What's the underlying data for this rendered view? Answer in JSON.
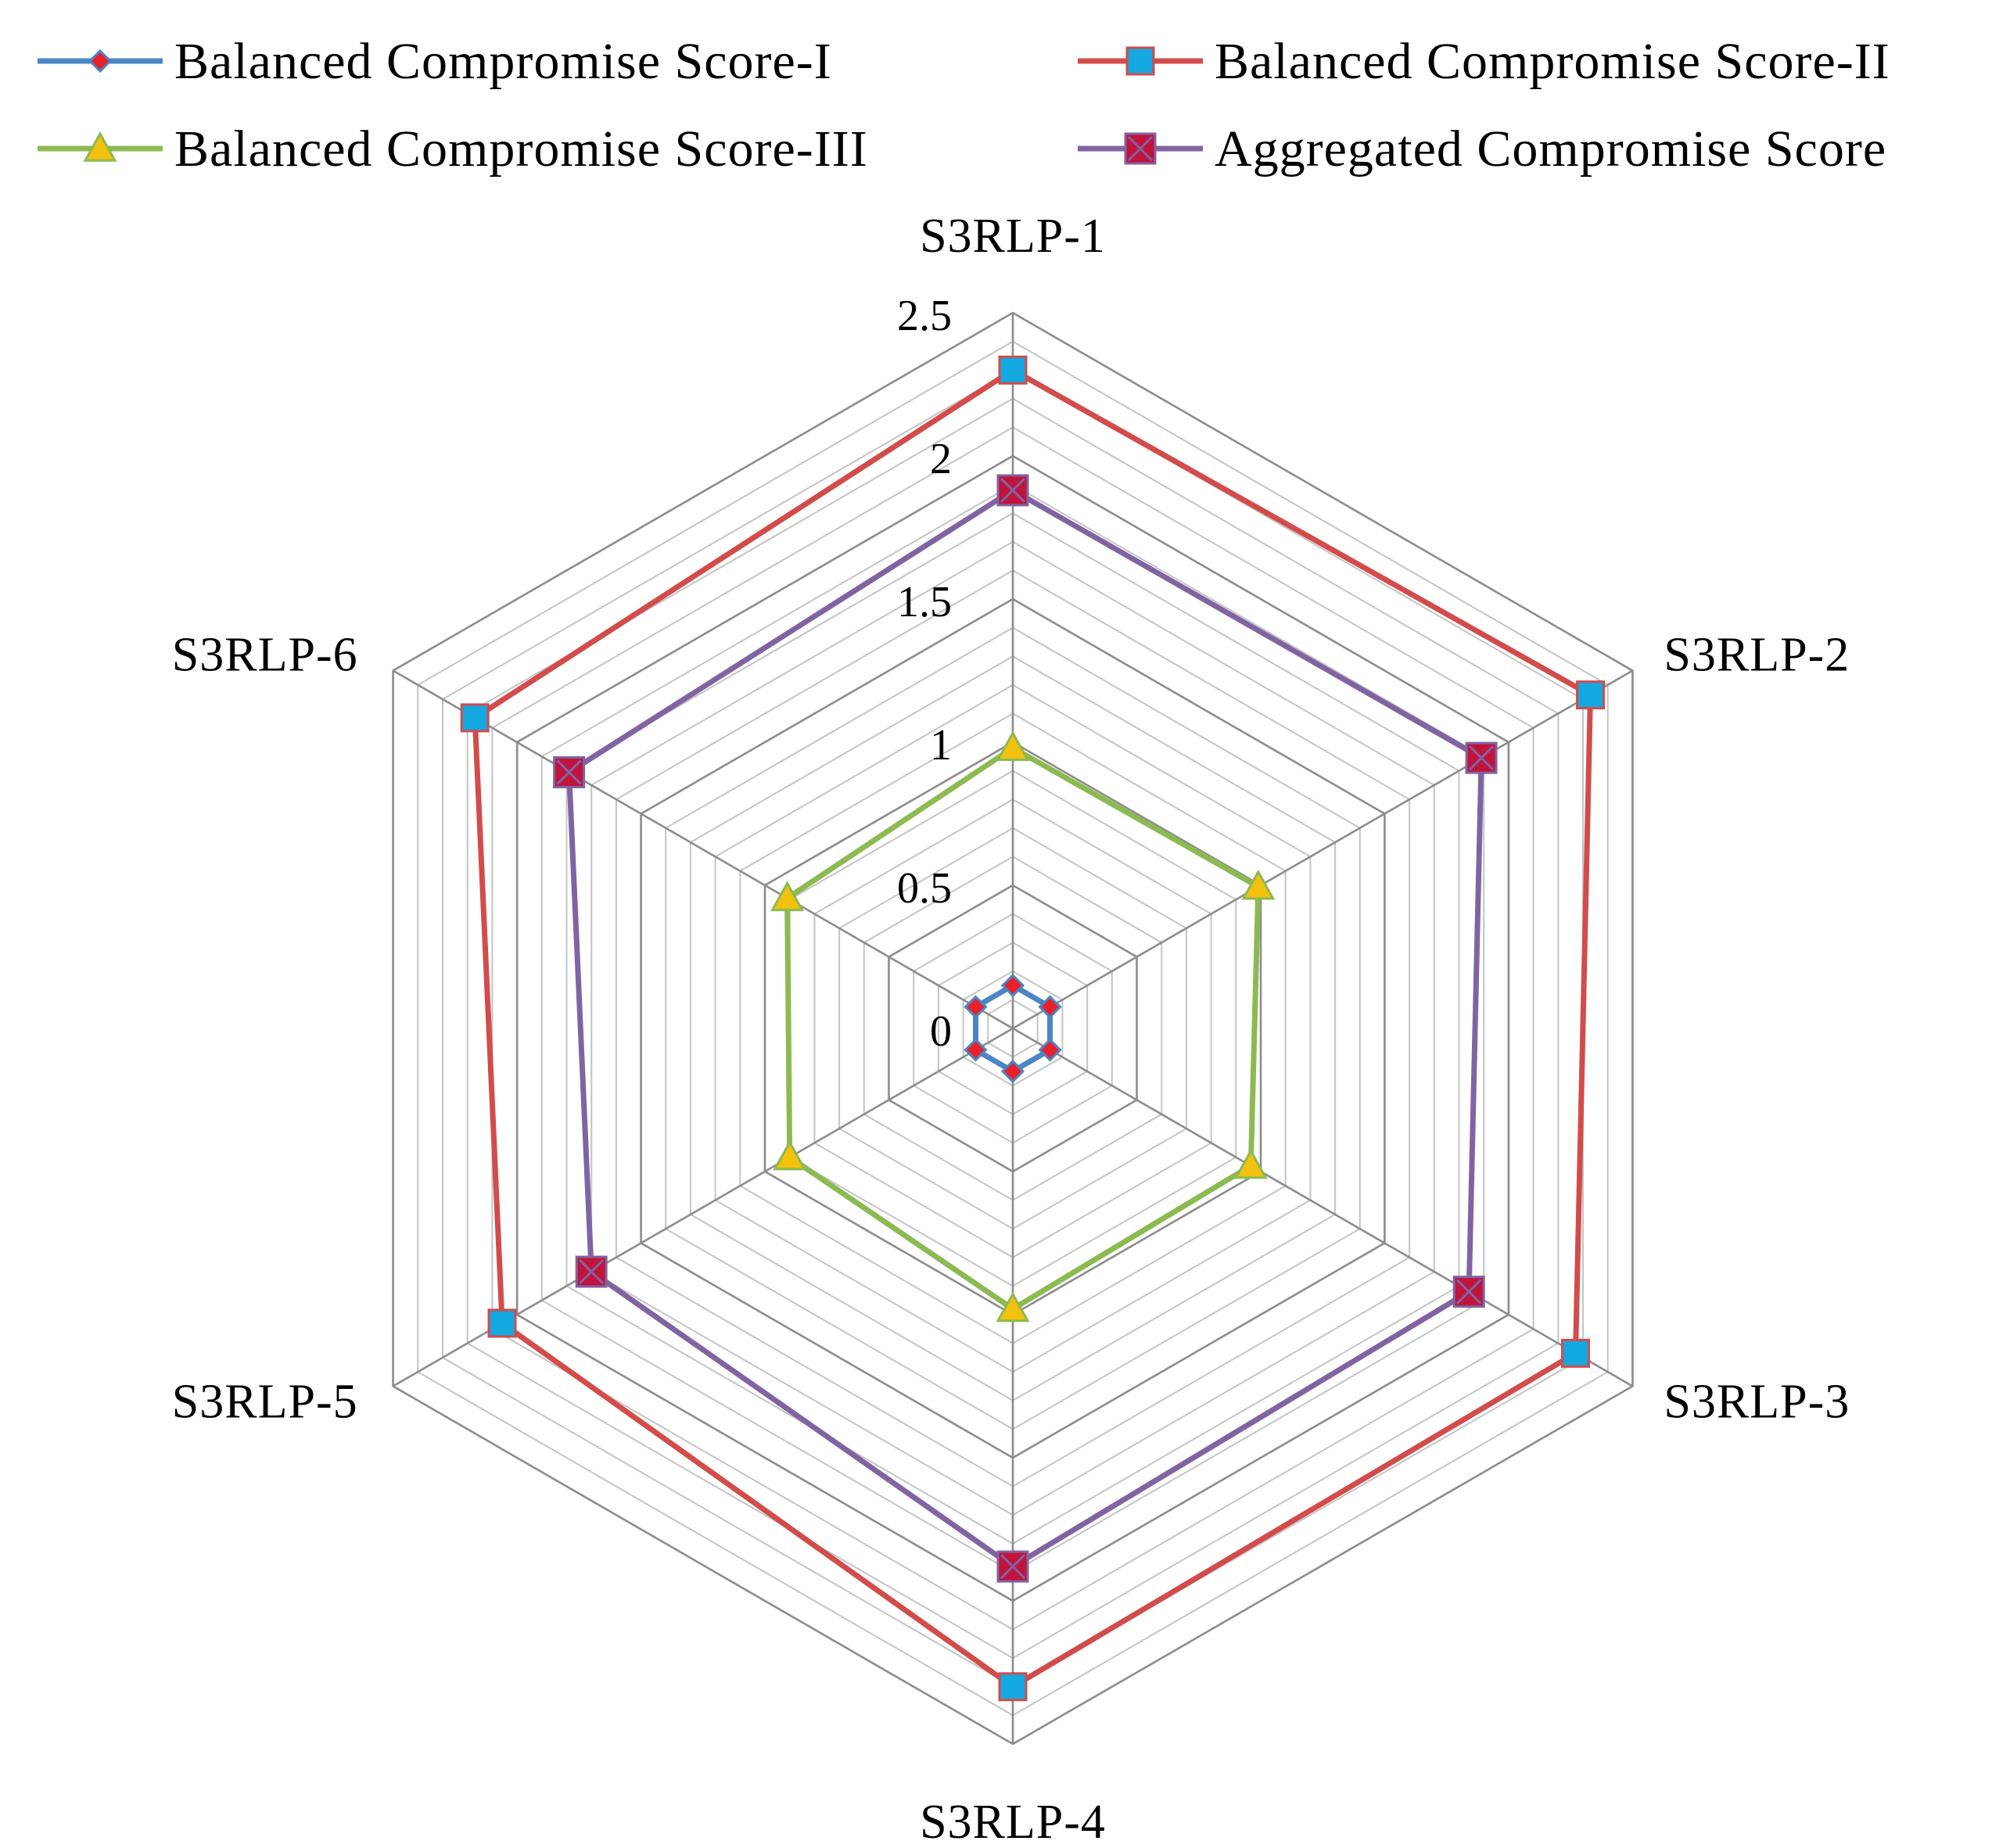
{
  "chart_data": {
    "type": "radar",
    "title": "",
    "categories": [
      "S3RLP-1",
      "S3RLP-2",
      "S3RLP-3",
      "S3RLP-4",
      "S3RLP-5",
      "S3RLP-6"
    ],
    "rlim": [
      0,
      2.5
    ],
    "major_ticks": [
      0,
      0.5,
      1,
      1.5,
      2,
      2.5
    ],
    "tick_labels": [
      "0",
      "0.5",
      "1",
      "1.5",
      "2",
      "2.5"
    ],
    "minor_step": 0.1,
    "grid": true,
    "legend_position": "top",
    "series": [
      {
        "name": "Balanced Compromise Score-I",
        "values": [
          0.15,
          0.15,
          0.15,
          0.15,
          0.15,
          0.15
        ],
        "line_color": "#4a86c5",
        "marker": "diamond",
        "marker_fill": "#e8202a",
        "marker_stroke": "#4a86c5"
      },
      {
        "name": "Balanced Compromise Score-II",
        "values": [
          2.3,
          2.33,
          2.27,
          2.3,
          2.06,
          2.17
        ],
        "line_color": "#d34b4b",
        "marker": "square",
        "marker_fill": "#14a8e0",
        "marker_stroke": "#d34b4b"
      },
      {
        "name": "Balanced Compromise Score-III",
        "values": [
          0.98,
          0.99,
          0.96,
          0.98,
          0.9,
          0.91
        ],
        "line_color": "#8cba51",
        "marker": "triangle",
        "marker_fill": "#f2c20e",
        "marker_stroke": "#8cba51"
      },
      {
        "name": "Aggregated Compromise Score",
        "values": [
          1.88,
          1.89,
          1.84,
          1.88,
          1.7,
          1.79
        ],
        "line_color": "#8064a2",
        "marker": "square-x",
        "marker_fill": "#c0143c",
        "marker_stroke": "#8064a2"
      }
    ]
  }
}
